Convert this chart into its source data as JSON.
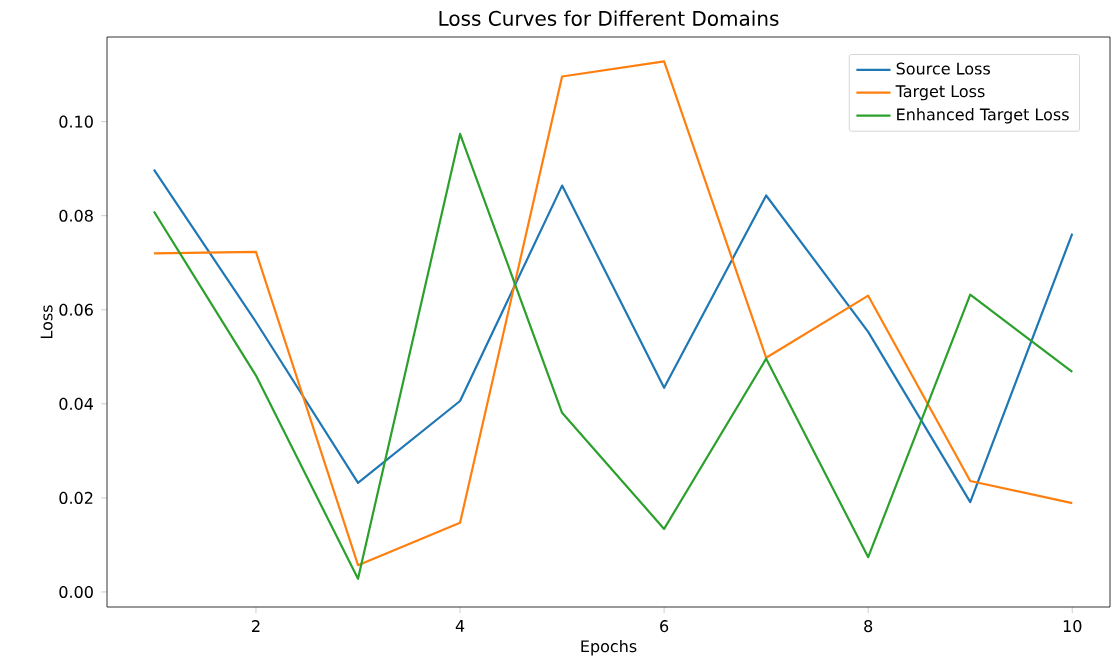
{
  "chart_data": {
    "type": "line",
    "title": "Loss Curves for Different Domains",
    "xlabel": "Epochs",
    "ylabel": "Loss",
    "x": [
      1,
      2,
      3,
      4,
      5,
      6,
      7,
      8,
      9,
      10
    ],
    "series": [
      {
        "name": "Source Loss",
        "color": "#1f77b4",
        "values": [
          0.0898,
          0.0574,
          0.0232,
          0.0406,
          0.0864,
          0.0434,
          0.0843,
          0.0553,
          0.0191,
          0.0762
        ]
      },
      {
        "name": "Target Loss",
        "color": "#ff7f0e",
        "values": [
          0.072,
          0.0723,
          0.0057,
          0.0147,
          0.1096,
          0.1128,
          0.0498,
          0.063,
          0.0236,
          0.0189
        ]
      },
      {
        "name": "Enhanced Target Loss",
        "color": "#2ca02c",
        "values": [
          0.0809,
          0.046,
          0.0028,
          0.0974,
          0.0381,
          0.0134,
          0.0496,
          0.0074,
          0.0632,
          0.0468
        ]
      }
    ],
    "xlim": [
      0.54,
      10.37
    ],
    "ylim": [
      -0.0032,
      0.118
    ],
    "xticks": [
      2,
      4,
      6,
      8,
      10
    ],
    "yticks": [
      {
        "value": 0,
        "label": "0.00"
      },
      {
        "value": 0.02,
        "label": "0.02"
      },
      {
        "value": 0.04,
        "label": "0.04"
      },
      {
        "value": 0.06,
        "label": "0.06"
      },
      {
        "value": 0.08,
        "label": "0.08"
      },
      {
        "value": 0.1,
        "label": "0.10"
      }
    ],
    "grid": false,
    "legend": "top right",
    "marker": "none",
    "line_style": "solid"
  }
}
